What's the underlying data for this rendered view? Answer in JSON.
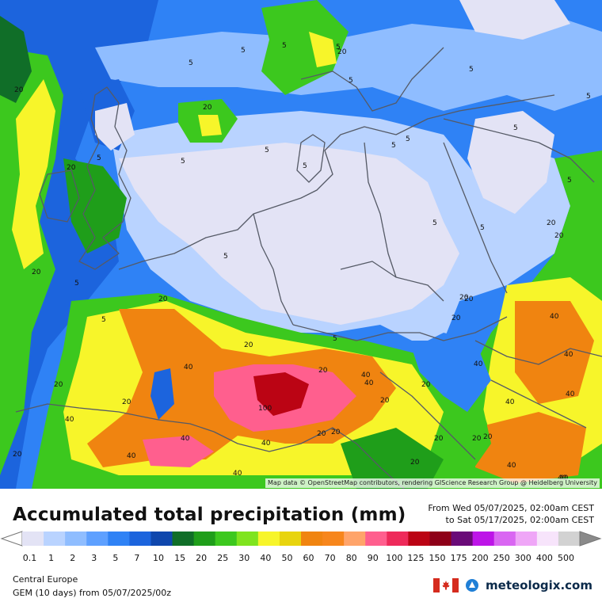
{
  "map": {
    "attribution": "Map data © OpenStreetMap contributors, rendering GIScience Research Group @ Heidelberg University",
    "contour_labels": [
      {
        "text": "20"
      },
      {
        "text": "5"
      },
      {
        "text": "5"
      },
      {
        "text": "5"
      },
      {
        "text": "5"
      },
      {
        "text": "20"
      },
      {
        "text": "5"
      },
      {
        "text": "5"
      },
      {
        "text": "5"
      },
      {
        "text": "5"
      },
      {
        "text": "20"
      },
      {
        "text": "5"
      },
      {
        "text": "5"
      },
      {
        "text": "5"
      },
      {
        "text": "5"
      },
      {
        "text": "5"
      },
      {
        "text": "20"
      },
      {
        "text": "5"
      },
      {
        "text": "5"
      },
      {
        "text": "5"
      },
      {
        "text": "5"
      },
      {
        "text": "20"
      },
      {
        "text": "5"
      },
      {
        "text": "20"
      },
      {
        "text": "20"
      },
      {
        "text": "5"
      },
      {
        "text": "5"
      },
      {
        "text": "20"
      },
      {
        "text": "5"
      },
      {
        "text": "40"
      },
      {
        "text": "40"
      },
      {
        "text": "20"
      },
      {
        "text": "40"
      },
      {
        "text": "40"
      },
      {
        "text": "20"
      },
      {
        "text": "40"
      },
      {
        "text": "20"
      },
      {
        "text": "40"
      },
      {
        "text": "100"
      },
      {
        "text": "40"
      },
      {
        "text": "20"
      },
      {
        "text": "40"
      },
      {
        "text": "20"
      },
      {
        "text": "20"
      },
      {
        "text": "40"
      },
      {
        "text": "40"
      },
      {
        "text": "20"
      },
      {
        "text": "40"
      },
      {
        "text": "20"
      },
      {
        "text": "40"
      },
      {
        "text": "20"
      },
      {
        "text": "20"
      },
      {
        "text": "20"
      },
      {
        "text": "40"
      },
      {
        "text": "40"
      },
      {
        "text": "20"
      },
      {
        "text": "20"
      },
      {
        "text": "40"
      },
      {
        "text": "20"
      },
      {
        "text": "40"
      },
      {
        "text": "20"
      },
      {
        "text": "20"
      }
    ]
  },
  "title": "Accumulated total precipitation (mm)",
  "period": {
    "from": "From Wed 05/07/2025, 02:00am CEST",
    "to": "to Sat 05/17/2025, 02:00am CEST"
  },
  "legend": {
    "labels": [
      "0.1",
      "1",
      "2",
      "3",
      "5",
      "7",
      "10",
      "15",
      "20",
      "25",
      "30",
      "40",
      "50",
      "60",
      "70",
      "80",
      "90",
      "100",
      "125",
      "150",
      "175",
      "200",
      "250",
      "300",
      "400",
      "500"
    ],
    "colors": [
      "#e3e3f5",
      "#b9d3ff",
      "#8fbdff",
      "#5ea0ff",
      "#2f82f5",
      "#1c64dd",
      "#0f47ad",
      "#106e28",
      "#1f9e1a",
      "#3cc81e",
      "#7fe41e",
      "#f7f52a",
      "#e8d40e",
      "#f08410",
      "#f7861c",
      "#ffa46a",
      "#ff5f8e",
      "#ee2a5a",
      "#bb0414",
      "#8e0018",
      "#6a0a78",
      "#bd14e8",
      "#d966f2",
      "#efa6f7",
      "#f7e4fb",
      "#d2d2d2"
    ]
  },
  "footer": {
    "region": "Central Europe",
    "model_line": "GEM (10 days) from 05/07/2025/00z"
  },
  "brand": {
    "name": "meteologix.com",
    "flag": "canada-flag-icon",
    "logo": "meteologix-logo-icon"
  }
}
